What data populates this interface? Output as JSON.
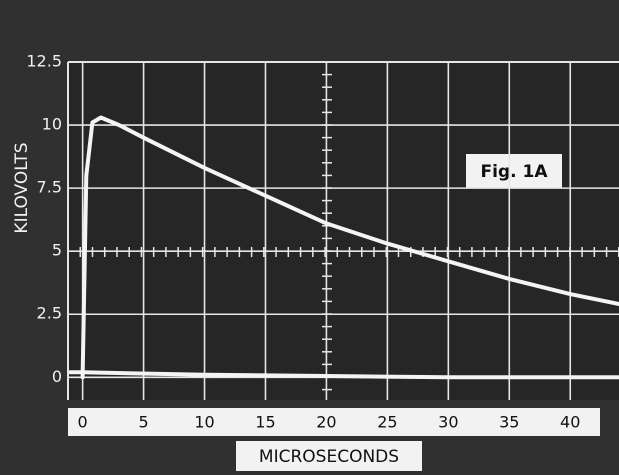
{
  "chart_data": {
    "type": "line",
    "title": "Fig. 1A",
    "x_label": "MICROSECONDS",
    "y_label": "KILOVOLTS",
    "xlim": [
      -1.2,
      44
    ],
    "ylim": [
      -0.9,
      12.5
    ],
    "xticks": [
      0,
      5,
      10,
      15,
      20,
      25,
      30,
      35,
      40
    ],
    "yticks": [
      0,
      2.5,
      5,
      7.5,
      10,
      12.5
    ],
    "grid": true,
    "series": [
      {
        "color": "#f4f4f4",
        "x": [
          0,
          0.3,
          0.8,
          1.5,
          3,
          5,
          10,
          15,
          20,
          25,
          30,
          35,
          40,
          44
        ],
        "values": [
          0,
          8,
          10.1,
          10.3,
          10,
          9.5,
          8.3,
          7.2,
          6.1,
          5.3,
          4.6,
          3.9,
          3.3,
          2.9
        ]
      },
      {
        "color": "#f4f4f4",
        "x": [
          -1,
          0,
          10,
          20,
          30,
          44
        ],
        "values": [
          0.2,
          0.2,
          0.1,
          0.05,
          0,
          0
        ]
      }
    ]
  }
}
